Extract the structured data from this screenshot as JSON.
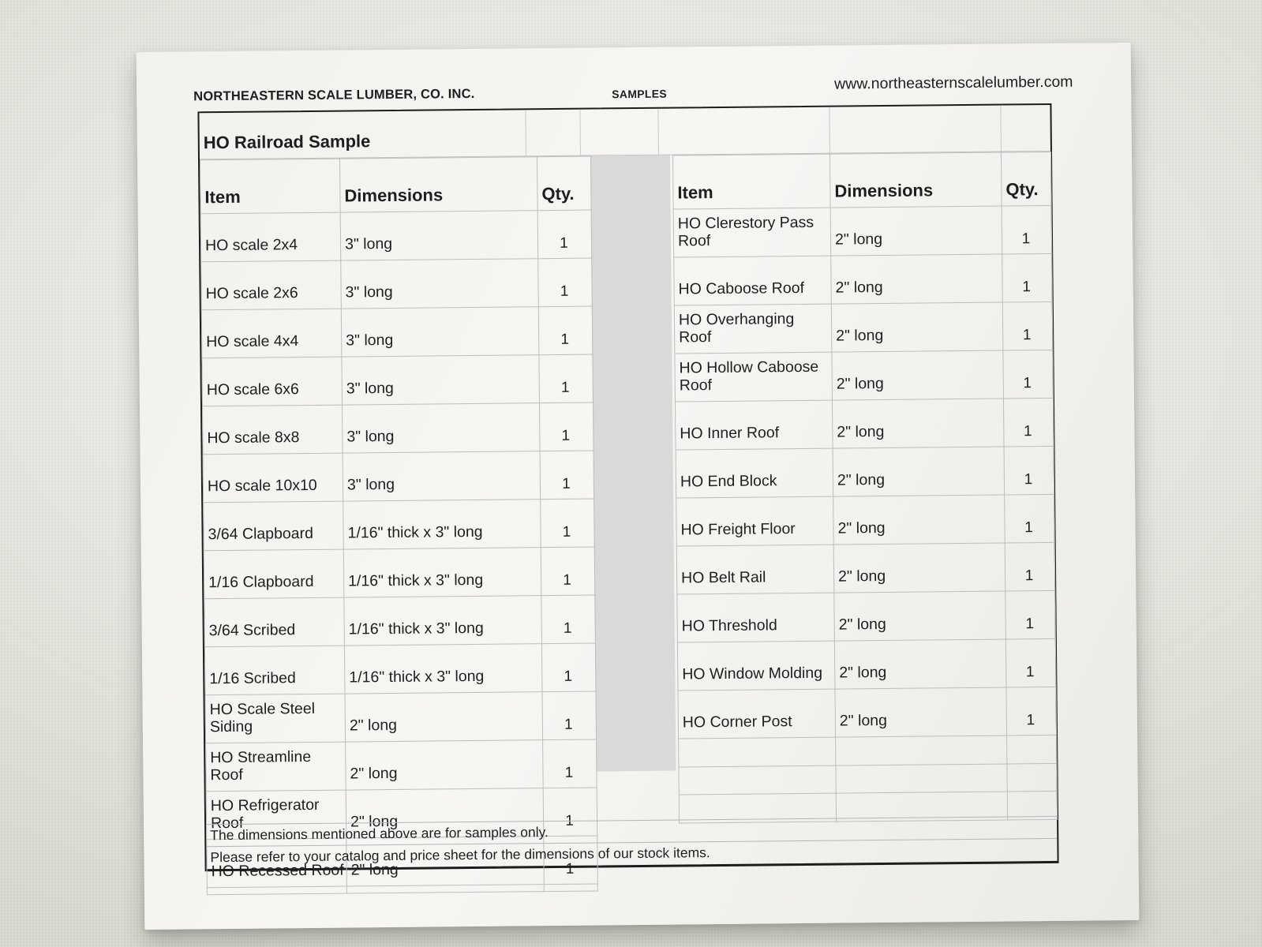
{
  "page_header": {
    "company": "NORTHEASTERN SCALE LUMBER, CO. INC.",
    "center_label": "SAMPLES",
    "website": "www.northeasternscalelumber.com"
  },
  "sheet": {
    "title": "HO Railroad Sample",
    "columns": [
      "Item",
      "Dimensions",
      "Qty."
    ],
    "left_table": {
      "rows": [
        {
          "item": "HO scale 2x4",
          "dimensions": "3\" long",
          "qty": "1"
        },
        {
          "item": "HO scale 2x6",
          "dimensions": "3\" long",
          "qty": "1"
        },
        {
          "item": "HO scale 4x4",
          "dimensions": "3\" long",
          "qty": "1"
        },
        {
          "item": "HO scale 6x6",
          "dimensions": "3\" long",
          "qty": "1"
        },
        {
          "item": "HO scale 8x8",
          "dimensions": "3\" long",
          "qty": "1"
        },
        {
          "item": "HO scale 10x10",
          "dimensions": "3\" long",
          "qty": "1"
        },
        {
          "item": "3/64 Clapboard",
          "dimensions": "1/16\" thick x 3\" long",
          "qty": "1"
        },
        {
          "item": "1/16 Clapboard",
          "dimensions": "1/16\" thick x 3\" long",
          "qty": "1"
        },
        {
          "item": "3/64 Scribed",
          "dimensions": "1/16\" thick x 3\" long",
          "qty": "1"
        },
        {
          "item": "1/16 Scribed",
          "dimensions": "1/16\" thick x 3\" long",
          "qty": "1"
        },
        {
          "item": "HO Scale Steel Siding",
          "dimensions": "2\" long",
          "qty": "1"
        },
        {
          "item": "HO Streamline Roof",
          "dimensions": "2\" long",
          "qty": "1"
        },
        {
          "item": "HO Refrigerator Roof",
          "dimensions": "2\" long",
          "qty": "1"
        },
        {
          "item": "HO Recessed Roof",
          "dimensions": "2\" long",
          "qty": "1"
        }
      ]
    },
    "right_table": {
      "rows": [
        {
          "item": "HO Clerestory Pass Roof",
          "dimensions": "2\" long",
          "qty": "1"
        },
        {
          "item": "HO Caboose Roof",
          "dimensions": "2\" long",
          "qty": "1"
        },
        {
          "item": "HO Overhanging Roof",
          "dimensions": "2\" long",
          "qty": "1"
        },
        {
          "item": "HO Hollow Caboose Roof",
          "dimensions": "2\" long",
          "qty": "1"
        },
        {
          "item": "HO Inner Roof",
          "dimensions": "2\" long",
          "qty": "1"
        },
        {
          "item": "HO End Block",
          "dimensions": "2\" long",
          "qty": "1"
        },
        {
          "item": "HO Freight Floor",
          "dimensions": "2\" long",
          "qty": "1"
        },
        {
          "item": "HO Belt Rail",
          "dimensions": "2\" long",
          "qty": "1"
        },
        {
          "item": "HO Threshold",
          "dimensions": "2\" long",
          "qty": "1"
        },
        {
          "item": "HO Window Molding",
          "dimensions": "2\" long",
          "qty": "1"
        },
        {
          "item": "HO Corner Post",
          "dimensions": "2\" long",
          "qty": "1"
        }
      ]
    },
    "footer_notes": [
      "The dimensions mentioned above are for samples only.",
      "Please refer to your catalog and price sheet for the dimensions of our stock items."
    ]
  },
  "colors": {
    "background": "#e3e5dc",
    "paper": "#f4f3ef",
    "frame_border": "#1d1d1d",
    "grid_line": "#bdbdbd",
    "separator_fill": "#d9dad7",
    "text": "#1e1e1e"
  }
}
